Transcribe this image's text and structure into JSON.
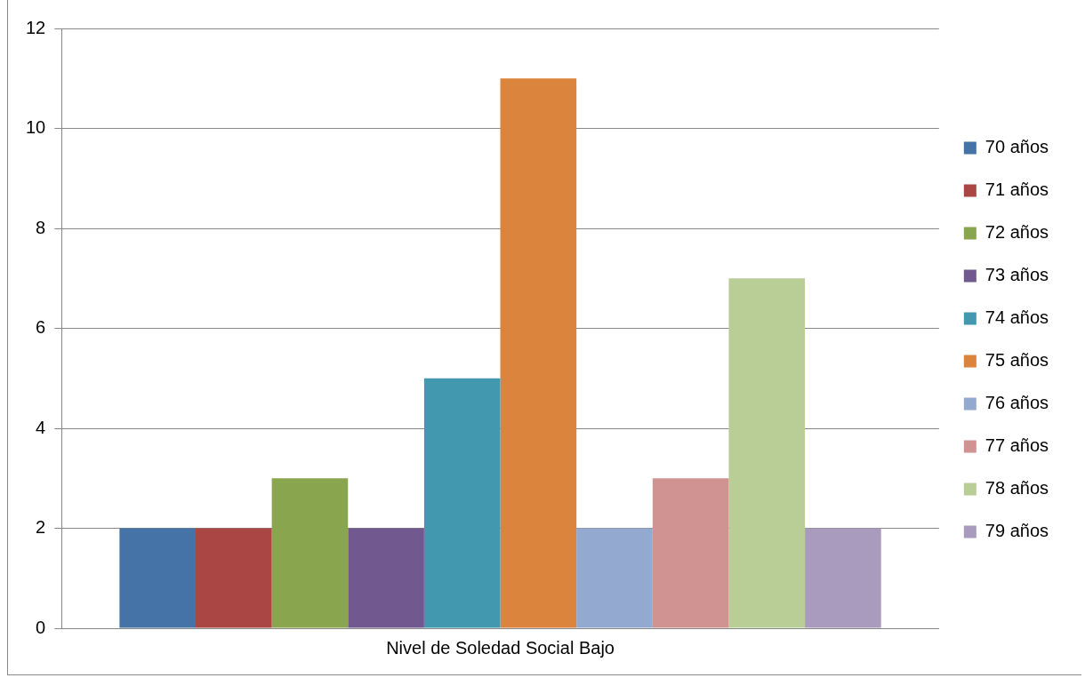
{
  "chart_data": {
    "type": "bar",
    "categories": [
      "Nivel de Soledad Social Bajo"
    ],
    "series": [
      {
        "name": "70 años",
        "color": "#4572a7",
        "values": [
          2
        ]
      },
      {
        "name": "71 años",
        "color": "#aa4643",
        "values": [
          2
        ]
      },
      {
        "name": "72 años",
        "color": "#89a54e",
        "values": [
          3
        ]
      },
      {
        "name": "73 años",
        "color": "#71588f",
        "values": [
          2
        ]
      },
      {
        "name": "74 años",
        "color": "#4198af",
        "values": [
          5
        ]
      },
      {
        "name": "75 años",
        "color": "#db843d",
        "values": [
          11
        ]
      },
      {
        "name": "76 años",
        "color": "#93a9cf",
        "values": [
          2
        ]
      },
      {
        "name": "77 años",
        "color": "#d19392",
        "values": [
          3
        ]
      },
      {
        "name": "78 años",
        "color": "#b9cd96",
        "values": [
          7
        ]
      },
      {
        "name": "79 años",
        "color": "#a99bbd",
        "values": [
          2
        ]
      }
    ],
    "ylim": [
      0,
      12
    ],
    "yticks": [
      0,
      2,
      4,
      6,
      8,
      10,
      12
    ],
    "grid": "y",
    "legend": "right"
  }
}
